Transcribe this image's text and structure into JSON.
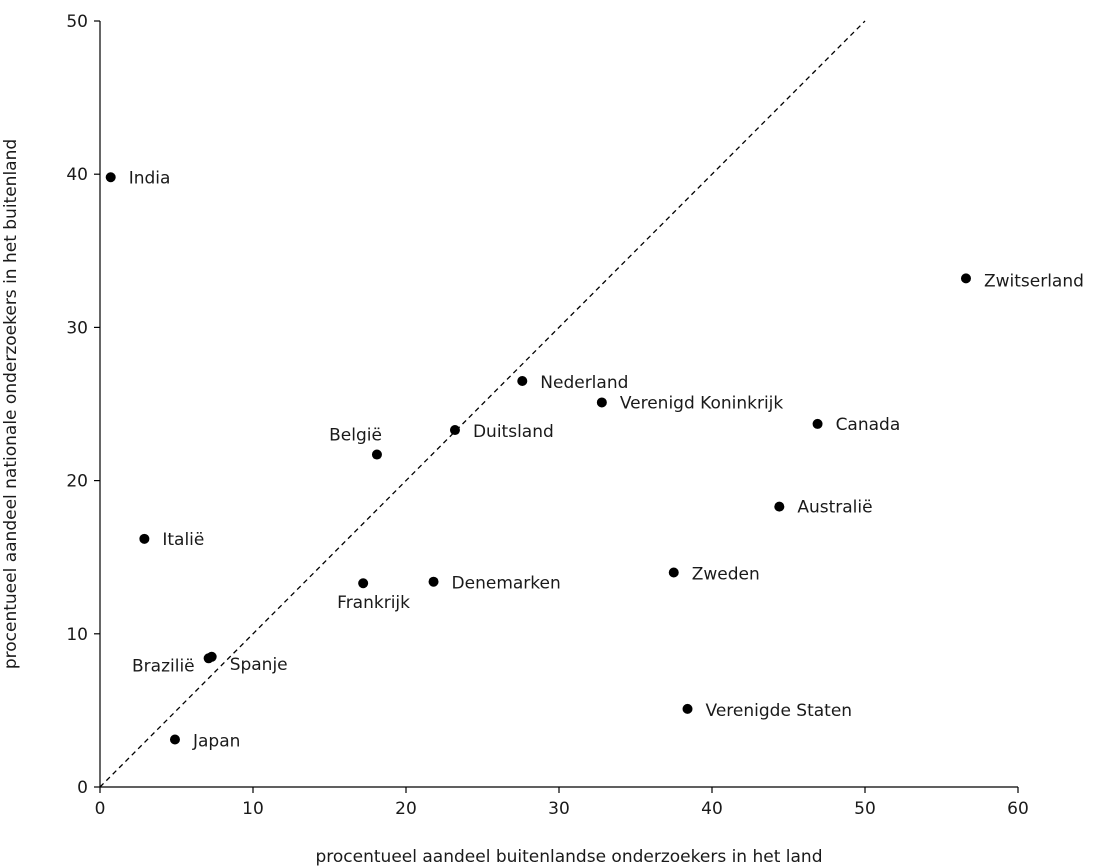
{
  "chart_data": {
    "type": "scatter",
    "xlabel": "procentueel aandeel buitenlandse onderzoekers in het land",
    "ylabel": "procentueel aandeel nationale onderzoekers in het buitenland",
    "xlim": [
      0,
      60
    ],
    "ylim": [
      0,
      50
    ],
    "xticks": [
      0,
      10,
      20,
      30,
      40,
      50,
      60
    ],
    "yticks": [
      0,
      10,
      20,
      30,
      40,
      50
    ],
    "grid": false,
    "reference_line": "diagonal y = x (dashed)",
    "points": [
      {
        "label": "India",
        "x": 0.7,
        "y": 39.8
      },
      {
        "label": "Italië",
        "x": 2.9,
        "y": 16.2
      },
      {
        "label": "Brazilië",
        "x": 7.1,
        "y": 8.4
      },
      {
        "label": "Spanje",
        "x": 7.3,
        "y": 8.5
      },
      {
        "label": "Japan",
        "x": 4.9,
        "y": 3.1
      },
      {
        "label": "België",
        "x": 18.1,
        "y": 21.7
      },
      {
        "label": "Frankrijk",
        "x": 17.2,
        "y": 13.3
      },
      {
        "label": "Denemarken",
        "x": 21.8,
        "y": 13.4
      },
      {
        "label": "Duitsland",
        "x": 23.2,
        "y": 23.3
      },
      {
        "label": "Nederland",
        "x": 27.6,
        "y": 26.5
      },
      {
        "label": "Verenigd Koninkrijk",
        "x": 32.8,
        "y": 25.1
      },
      {
        "label": "Zweden",
        "x": 37.5,
        "y": 14.0
      },
      {
        "label": "Verenigde Staten",
        "x": 38.4,
        "y": 5.1
      },
      {
        "label": "Australië",
        "x": 44.4,
        "y": 18.3
      },
      {
        "label": "Canada",
        "x": 46.9,
        "y": 23.7
      },
      {
        "label": "Zwitserland",
        "x": 56.6,
        "y": 33.2
      }
    ]
  }
}
